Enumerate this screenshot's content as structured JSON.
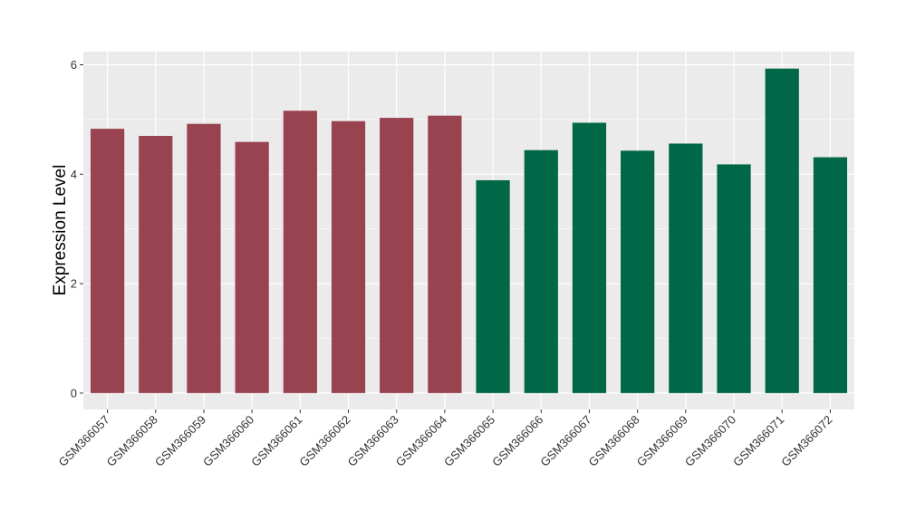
{
  "chart_data": {
    "type": "bar",
    "ylabel": "Expression Level",
    "xlabel": "",
    "ylim": [
      -0.3,
      6.24
    ],
    "yticks": [
      0,
      2,
      4,
      6
    ],
    "grid": true,
    "categories": [
      "GSM366057",
      "GSM366058",
      "GSM366059",
      "GSM366060",
      "GSM366061",
      "GSM366062",
      "GSM366063",
      "GSM366064",
      "GSM366065",
      "GSM366066",
      "GSM366067",
      "GSM366068",
      "GSM366069",
      "GSM366070",
      "GSM366071",
      "GSM366072"
    ],
    "values": [
      4.83,
      4.7,
      4.92,
      4.59,
      5.16,
      4.97,
      5.03,
      5.07,
      3.89,
      4.44,
      4.94,
      4.43,
      4.56,
      4.18,
      5.93,
      4.31
    ],
    "bar_colors": [
      "#9a4350",
      "#9a4350",
      "#9a4350",
      "#9a4350",
      "#9a4350",
      "#9a4350",
      "#9a4350",
      "#9a4350",
      "#006847",
      "#006847",
      "#006847",
      "#006847",
      "#006847",
      "#006847",
      "#006847",
      "#006847"
    ],
    "panel_background": "#ebebeb",
    "grid_color": "#ffffff"
  }
}
